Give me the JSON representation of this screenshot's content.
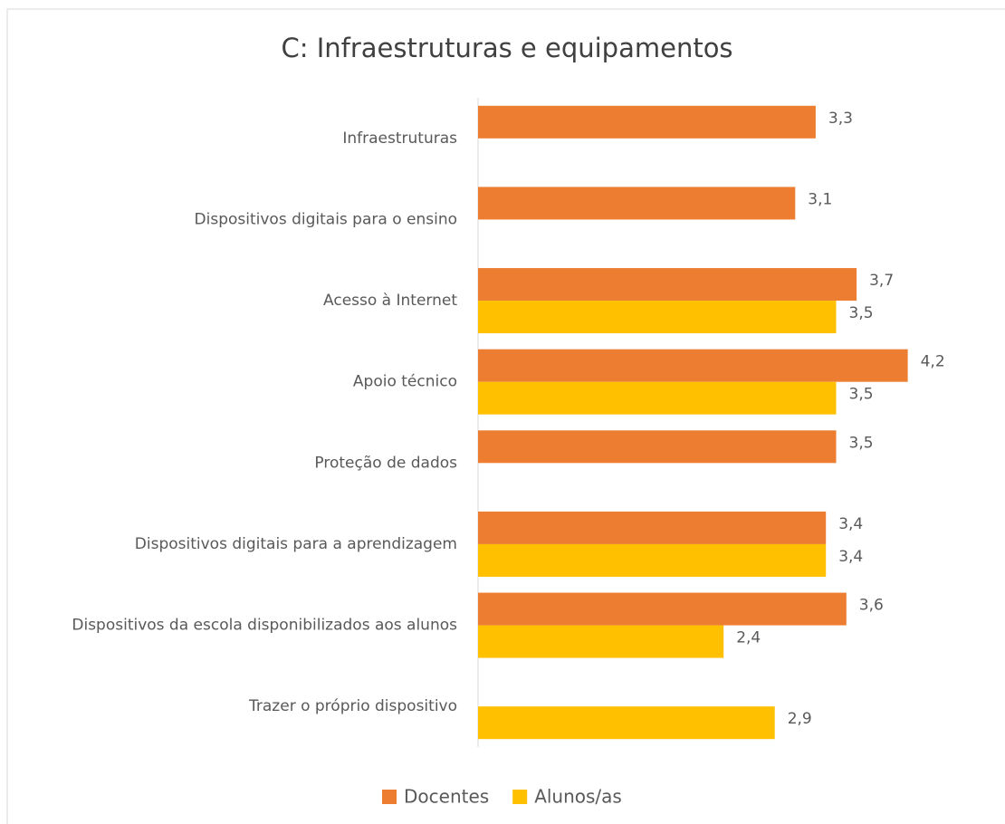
{
  "chart_data": {
    "type": "bar",
    "orientation": "horizontal",
    "title": "C: Infraestruturas e equipamentos",
    "categories": [
      "Infraestruturas",
      "Dispositivos digitais para o ensino",
      "Acesso à Internet",
      "Apoio técnico",
      "Proteção de dados",
      "Dispositivos digitais para a aprendizagem",
      "Dispositivos da escola disponibilizados aos alunos",
      "Trazer o próprio dispositivo"
    ],
    "series": [
      {
        "name": "Docentes",
        "color": "#ED7D31",
        "values": [
          3.3,
          3.1,
          3.7,
          4.2,
          3.5,
          3.4,
          3.6,
          null
        ],
        "value_labels": [
          "3,3",
          "3,1",
          "3,7",
          "4,2",
          "3,5",
          "3,4",
          "3,6",
          null
        ]
      },
      {
        "name": "Alunos/as",
        "color": "#FFC000",
        "values": [
          null,
          null,
          3.5,
          3.5,
          null,
          3.4,
          2.4,
          2.9
        ],
        "value_labels": [
          null,
          null,
          "3,5",
          "3,5",
          null,
          "3,4",
          "2,4",
          "2,9"
        ]
      }
    ],
    "xlim": [
      0,
      5
    ],
    "legend": "bottom"
  }
}
